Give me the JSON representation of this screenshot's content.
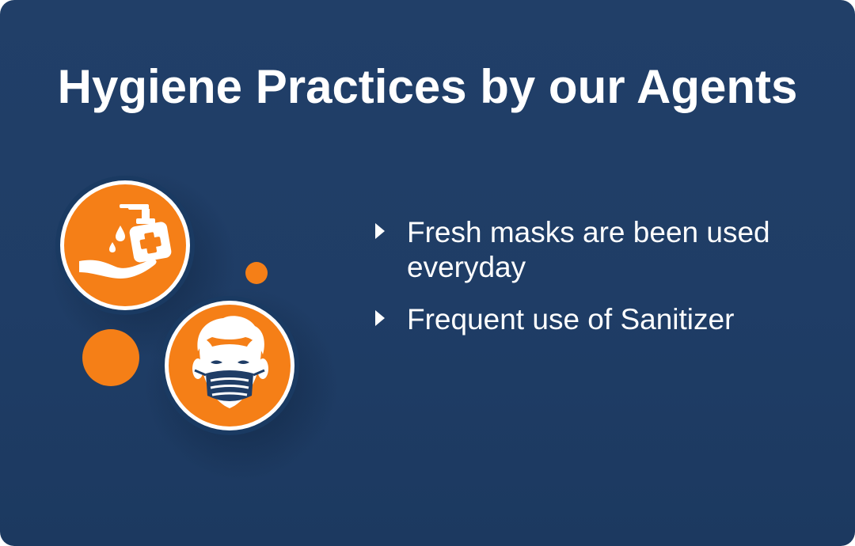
{
  "title": "Hygiene Practices by our Agents",
  "bullets": [
    {
      "text": "Fresh masks are been used everyday"
    },
    {
      "text": "Frequent use of Sanitizer"
    }
  ],
  "icons": {
    "sanitizer": "hand-sanitizer-icon",
    "mask": "face-mask-icon",
    "bullet": "caret-right-icon"
  },
  "colors": {
    "background": "#203f67",
    "accent": "#f57f17",
    "text": "#ffffff"
  }
}
